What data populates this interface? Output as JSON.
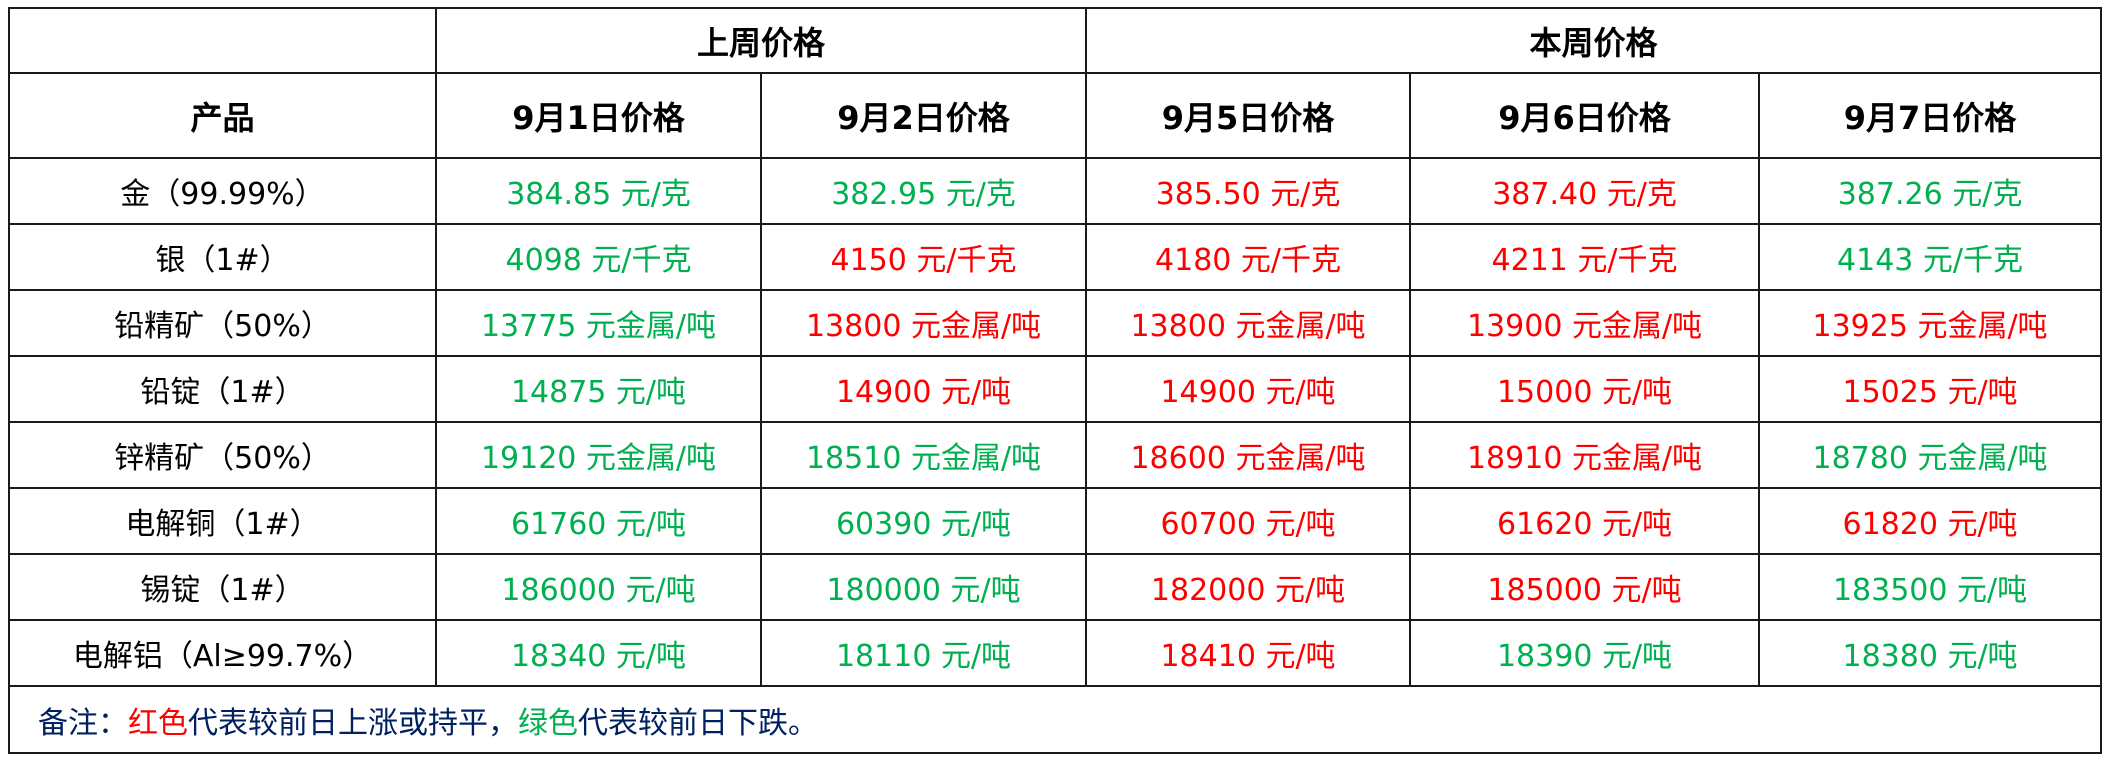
{
  "colors": {
    "up": "#FF0000",
    "down": "#00B050",
    "note": "#002060"
  },
  "header": {
    "groups": [
      {
        "label": "上周价格"
      },
      {
        "label": "本周价格"
      }
    ],
    "product_label": "产品",
    "dates": [
      "9月1日价格",
      "9月2日价格",
      "9月5日价格",
      "9月6日价格",
      "9月7日价格"
    ]
  },
  "rows": [
    {
      "product": "金（99.99%）",
      "prices": [
        {
          "text": "384.85 元/克",
          "trend": "down"
        },
        {
          "text": "382.95 元/克",
          "trend": "down"
        },
        {
          "text": "385.50 元/克",
          "trend": "up"
        },
        {
          "text": "387.40 元/克",
          "trend": "up"
        },
        {
          "text": "387.26 元/克",
          "trend": "down"
        }
      ]
    },
    {
      "product": "银（1#）",
      "prices": [
        {
          "text": "4098 元/千克",
          "trend": "down"
        },
        {
          "text": "4150 元/千克",
          "trend": "up"
        },
        {
          "text": "4180 元/千克",
          "trend": "up"
        },
        {
          "text": "4211 元/千克",
          "trend": "up"
        },
        {
          "text": "4143 元/千克",
          "trend": "down"
        }
      ]
    },
    {
      "product": "铅精矿（50%）",
      "prices": [
        {
          "text": "13775 元金属/吨",
          "trend": "down"
        },
        {
          "text": "13800 元金属/吨",
          "trend": "up"
        },
        {
          "text": "13800 元金属/吨",
          "trend": "up"
        },
        {
          "text": "13900 元金属/吨",
          "trend": "up"
        },
        {
          "text": "13925 元金属/吨",
          "trend": "up"
        }
      ]
    },
    {
      "product": "铅锭（1#）",
      "prices": [
        {
          "text": "14875 元/吨",
          "trend": "down"
        },
        {
          "text": "14900 元/吨",
          "trend": "up"
        },
        {
          "text": "14900 元/吨",
          "trend": "up"
        },
        {
          "text": "15000 元/吨",
          "trend": "up"
        },
        {
          "text": "15025 元/吨",
          "trend": "up"
        }
      ]
    },
    {
      "product": "锌精矿（50%）",
      "prices": [
        {
          "text": "19120 元金属/吨",
          "trend": "down"
        },
        {
          "text": "18510 元金属/吨",
          "trend": "down"
        },
        {
          "text": "18600 元金属/吨",
          "trend": "up"
        },
        {
          "text": "18910 元金属/吨",
          "trend": "up"
        },
        {
          "text": "18780 元金属/吨",
          "trend": "down"
        }
      ]
    },
    {
      "product": "电解铜（1#）",
      "prices": [
        {
          "text": "61760 元/吨",
          "trend": "down"
        },
        {
          "text": "60390 元/吨",
          "trend": "down"
        },
        {
          "text": "60700 元/吨",
          "trend": "up"
        },
        {
          "text": "61620 元/吨",
          "trend": "up"
        },
        {
          "text": "61820 元/吨",
          "trend": "up"
        }
      ]
    },
    {
      "product": "锡锭（1#）",
      "prices": [
        {
          "text": "186000 元/吨",
          "trend": "down"
        },
        {
          "text": "180000 元/吨",
          "trend": "down"
        },
        {
          "text": "182000 元/吨",
          "trend": "up"
        },
        {
          "text": "185000 元/吨",
          "trend": "up"
        },
        {
          "text": "183500 元/吨",
          "trend": "down"
        }
      ]
    },
    {
      "product": "电解铝（Al≥99.7%）",
      "prices": [
        {
          "text": "18340 元/吨",
          "trend": "down"
        },
        {
          "text": "18110 元/吨",
          "trend": "down"
        },
        {
          "text": "18410 元/吨",
          "trend": "up"
        },
        {
          "text": "18390 元/吨",
          "trend": "down"
        },
        {
          "text": "18380 元/吨",
          "trend": "down"
        }
      ]
    }
  ],
  "note": {
    "prefix": "备注：",
    "red_word": "红色",
    "red_text": "代表较前日上涨或持平，",
    "green_word": "绿色",
    "green_text": "代表较前日下跌。"
  }
}
